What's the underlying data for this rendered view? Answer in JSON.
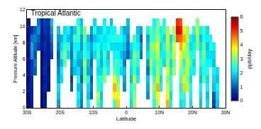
{
  "chart_data": {
    "type": "heatmap",
    "title": "Tropical Atlantic",
    "x_label": "Latitude",
    "y_label": "Pressure Altitude [km]",
    "color": "Jet",
    "xlim": [
      -30,
      30
    ],
    "ylim": [
      0,
      12
    ],
    "xticks": [
      {
        "value": -30,
        "label": "30S"
      },
      {
        "value": -20,
        "label": "20S"
      },
      {
        "value": -10,
        "label": "10S"
      },
      0,
      {
        "value": 10,
        "label": "10N"
      },
      {
        "value": 20,
        "label": "20N"
      },
      {
        "value": 30,
        "label": "30N"
      }
    ],
    "yticks": [
      0,
      2,
      4,
      6,
      8,
      10,
      12
    ],
    "colorbar": {
      "title": "ppb/day",
      "range": [
        0,
        6
      ],
      "ticks": [
        0,
        1,
        2,
        3,
        4,
        5,
        6
      ]
    },
    "x": [
      -29.5,
      -28.5,
      -27.5,
      -26.5,
      -25.5,
      -24.5,
      -23.5,
      -22.5,
      -21.5,
      -20.5,
      -19.5,
      -18.5,
      -17.5,
      -16.5,
      -15.5,
      -14.5,
      -13.5,
      -12.5,
      -11.5,
      -10.5,
      -9.5,
      -8.5,
      -7.5,
      -6.5,
      -5.5,
      -4.5,
      -3.5,
      -2.5,
      -1.5,
      -0.5,
      0.5,
      1.5,
      2.5,
      3.5,
      4.5,
      5.5,
      6.5,
      7.5,
      8.5,
      9.5,
      10.5,
      11.5,
      12.5,
      13.5,
      14.5,
      15.5,
      16.5,
      17.5,
      18.5,
      19.5,
      20.5,
      21.5,
      22.5,
      23.5,
      24.5,
      25.5,
      26.5,
      27.5,
      28.5,
      29.5
    ],
    "y": [
      0.5,
      1.5,
      2.5,
      3.5,
      4.5,
      5.5,
      6.5,
      7.5,
      8.5,
      9.5,
      10.5,
      11.5
    ],
    "z": [
      [
        0.2,
        0.2,
        0.3,
        0.2,
        0.3,
        0.3,
        0.2,
        0.3,
        0.2,
        0.3,
        0.2,
        null
      ],
      [
        0.4,
        0.5,
        0.5,
        0.6,
        0.8,
        0.7,
        1.5,
        1.6,
        1.2,
        0.6,
        null,
        null
      ],
      [
        null,
        null,
        null,
        null,
        1.0,
        1.2,
        0.9,
        1.1,
        1.3,
        1.0,
        null,
        null
      ],
      [
        null,
        null,
        null,
        null,
        null,
        null,
        null,
        0.8,
        1.0,
        1.4,
        1.2,
        null
      ],
      [
        0.1,
        0.1,
        0.2,
        0.1,
        0.2,
        0.1,
        0.2,
        0.3,
        0.2,
        0.3,
        0.4,
        null
      ],
      [
        0.4,
        0.3,
        0.5,
        0.4,
        0.6,
        0.5,
        0.4,
        0.6,
        0.5,
        0.7,
        0.8,
        null
      ],
      [
        null,
        null,
        0.2,
        0.3,
        0.2,
        0.4,
        0.3,
        0.3,
        0.4,
        0.5,
        0.6,
        null
      ],
      [
        null,
        null,
        null,
        null,
        null,
        null,
        0.8,
        1.0,
        1.2,
        1.5,
        1.8,
        null
      ],
      [
        null,
        null,
        null,
        null,
        null,
        null,
        null,
        null,
        null,
        null,
        null,
        null
      ],
      [
        1.5,
        1.8,
        2.0,
        1.6,
        1.4,
        1.2,
        1.0,
        1.3,
        1.5,
        1.8,
        null,
        null
      ],
      [
        null,
        null,
        null,
        2.0,
        2.2,
        1.8,
        2.4,
        2.0,
        1.7,
        null,
        null,
        null
      ],
      [
        null,
        null,
        null,
        null,
        null,
        2.8,
        3.0,
        2.6,
        2.2,
        2.0,
        null,
        null
      ],
      [
        null,
        null,
        null,
        null,
        null,
        null,
        2.0,
        2.4,
        1.8,
        2.2,
        null,
        null
      ],
      [
        null,
        null,
        1.0,
        0.8,
        1.2,
        1.4,
        1.0,
        1.2,
        1.6,
        1.5,
        null,
        null
      ],
      [
        null,
        null,
        null,
        null,
        1.8,
        2.0,
        2.4,
        2.2,
        2.6,
        1.9,
        null,
        null
      ],
      [
        2.0,
        2.2,
        1.8,
        2.4,
        2.0,
        1.6,
        1.8,
        2.2,
        2.5,
        2.8,
        2.4,
        null
      ],
      [
        1.2,
        1.4,
        1.6,
        1.0,
        1.3,
        1.5,
        1.8,
        1.4,
        1.6,
        2.0,
        1.8,
        null
      ],
      [
        null,
        null,
        null,
        3.0,
        2.8,
        3.2,
        2.6,
        2.4,
        2.8,
        3.0,
        null,
        null
      ],
      [
        2.2,
        1.8,
        2.0,
        2.4,
        1.6,
        1.8,
        2.2,
        2.0,
        1.8,
        null,
        null,
        null
      ],
      [
        null,
        1.0,
        1.2,
        0.9,
        1.4,
        1.1,
        1.3,
        1.6,
        1.2,
        1.5,
        null,
        null
      ],
      [
        null,
        null,
        null,
        null,
        null,
        null,
        2.0,
        2.2,
        1.8,
        2.4,
        2.0,
        null
      ],
      [
        2.8,
        3.2,
        2.6,
        2.4,
        2.0,
        2.2,
        2.6,
        2.4,
        2.0,
        1.8,
        null,
        null
      ],
      [
        2.0,
        1.8,
        2.2,
        2.4,
        2.0,
        1.6,
        1.8,
        2.0,
        2.2,
        1.9,
        null,
        null
      ],
      [
        null,
        null,
        null,
        3.0,
        2.8,
        2.4,
        2.6,
        2.2,
        2.0,
        2.4,
        2.2,
        null
      ],
      [
        null,
        null,
        null,
        null,
        2.2,
        2.0,
        1.8,
        2.4,
        2.2,
        2.0,
        null,
        null
      ],
      [
        null,
        null,
        null,
        null,
        null,
        null,
        null,
        2.0,
        2.4,
        2.2,
        1.8,
        null
      ],
      [
        2.6,
        3.8,
        4.2,
        3.6,
        2.8,
        2.4,
        2.2,
        2.0,
        2.4,
        2.2,
        null,
        null
      ],
      [
        4.0,
        3.6,
        3.2,
        2.8,
        2.4,
        2.6,
        2.2,
        2.0,
        2.4,
        null,
        null,
        null
      ],
      [
        null,
        null,
        null,
        null,
        2.0,
        2.2,
        1.8,
        2.0,
        2.4,
        2.2,
        null,
        null
      ],
      [
        null,
        null,
        1.4,
        1.6,
        1.8,
        1.2,
        1.5,
        1.8,
        2.0,
        1.6,
        null,
        null
      ],
      [
        null,
        null,
        null,
        null,
        null,
        null,
        1.0,
        1.2,
        1.4,
        1.6,
        1.8,
        null
      ],
      [
        2.0,
        2.2,
        2.4,
        1.8,
        2.0,
        2.2,
        1.8,
        2.0,
        null,
        null,
        null,
        null
      ],
      [
        3.2,
        3.0,
        2.8,
        3.4,
        2.6,
        2.8,
        3.0,
        2.4,
        2.6,
        null,
        null,
        null
      ],
      [
        null,
        null,
        null,
        2.2,
        2.0,
        2.4,
        2.6,
        2.2,
        2.0,
        1.8,
        null,
        null
      ],
      [
        null,
        null,
        null,
        null,
        null,
        null,
        1.2,
        1.4,
        1.0,
        1.6,
        null,
        null
      ],
      [
        null,
        null,
        null,
        null,
        null,
        null,
        null,
        null,
        null,
        null,
        null,
        null
      ],
      [
        null,
        1.4,
        1.6,
        1.8,
        1.2,
        1.5,
        2.0,
        1.8,
        1.6,
        2.2,
        null,
        null
      ],
      [
        null,
        null,
        null,
        null,
        3.0,
        3.4,
        2.8,
        3.2,
        2.6,
        3.0,
        null,
        null
      ],
      [
        2.4,
        2.8,
        3.0,
        2.6,
        2.2,
        2.4,
        2.8,
        3.0,
        2.6,
        2.4,
        2.2,
        null
      ],
      [
        3.4,
        3.8,
        4.2,
        3.6,
        3.2,
        3.0,
        3.4,
        3.8,
        3.2,
        3.0,
        2.8,
        null
      ],
      [
        null,
        null,
        2.2,
        2.0,
        2.4,
        2.6,
        2.2,
        2.0,
        2.4,
        2.2,
        null,
        null
      ],
      [
        null,
        null,
        null,
        null,
        null,
        2.0,
        2.2,
        2.4,
        2.0,
        2.6,
        2.4,
        null
      ],
      [
        4.2,
        3.8,
        3.4,
        3.0,
        3.6,
        3.2,
        3.0,
        3.4,
        3.6,
        3.2,
        null,
        null
      ],
      [
        2.2,
        2.0,
        2.4,
        2.6,
        2.2,
        2.0,
        2.4,
        2.2,
        2.0,
        null,
        null,
        null
      ],
      [
        null,
        null,
        null,
        null,
        3.2,
        3.0,
        3.4,
        3.6,
        3.0,
        3.2,
        null,
        null
      ],
      [
        null,
        null,
        null,
        null,
        null,
        null,
        null,
        null,
        4.8,
        5.4,
        5.0,
        null
      ],
      [
        2.0,
        2.4,
        2.2,
        2.6,
        3.0,
        3.4,
        3.8,
        4.2,
        4.6,
        5.2,
        4.8,
        null
      ],
      [
        2.2,
        2.6,
        4.0,
        3.6,
        2.8,
        2.4,
        3.0,
        3.6,
        4.2,
        3.8,
        null,
        null
      ],
      [
        null,
        null,
        3.2,
        3.0,
        3.4,
        3.6,
        3.2,
        3.0,
        3.4,
        3.2,
        null,
        null
      ],
      [
        2.0,
        2.2,
        2.4,
        2.0,
        2.2,
        2.6,
        2.4,
        2.0,
        2.2,
        null,
        null,
        null
      ],
      [
        null,
        null,
        null,
        null,
        2.2,
        2.0,
        2.4,
        2.2,
        2.0,
        2.4,
        null,
        null
      ],
      [
        null,
        null,
        null,
        null,
        null,
        null,
        null,
        3.0,
        3.2,
        3.4,
        3.0,
        null
      ],
      [
        1.8,
        2.0,
        2.2,
        1.8,
        2.0,
        2.4,
        2.2,
        2.0,
        1.8,
        2.2,
        null,
        null
      ],
      [
        null,
        null,
        null,
        2.8,
        2.4,
        2.6,
        3.0,
        2.8,
        2.4,
        2.6,
        null,
        null
      ],
      [
        2.0,
        1.8,
        2.2,
        2.0,
        2.4,
        2.2,
        2.0,
        1.8,
        2.2,
        2.0,
        null,
        null
      ],
      [
        null,
        null,
        null,
        null,
        null,
        2.2,
        2.0,
        2.4,
        2.2,
        null,
        null,
        null
      ],
      [
        0.8,
        1.0,
        1.8,
        2.0,
        2.2,
        1.8,
        2.0,
        2.2,
        null,
        null,
        null,
        null
      ],
      [
        1.8,
        2.0,
        2.2,
        1.8,
        2.0,
        null,
        null,
        null,
        null,
        null,
        null,
        null
      ],
      [
        null,
        null,
        null,
        null,
        null,
        null,
        null,
        null,
        null,
        null,
        null,
        null
      ],
      [
        null,
        null,
        null,
        null,
        null,
        null,
        null,
        null,
        null,
        null,
        null,
        null
      ]
    ]
  }
}
